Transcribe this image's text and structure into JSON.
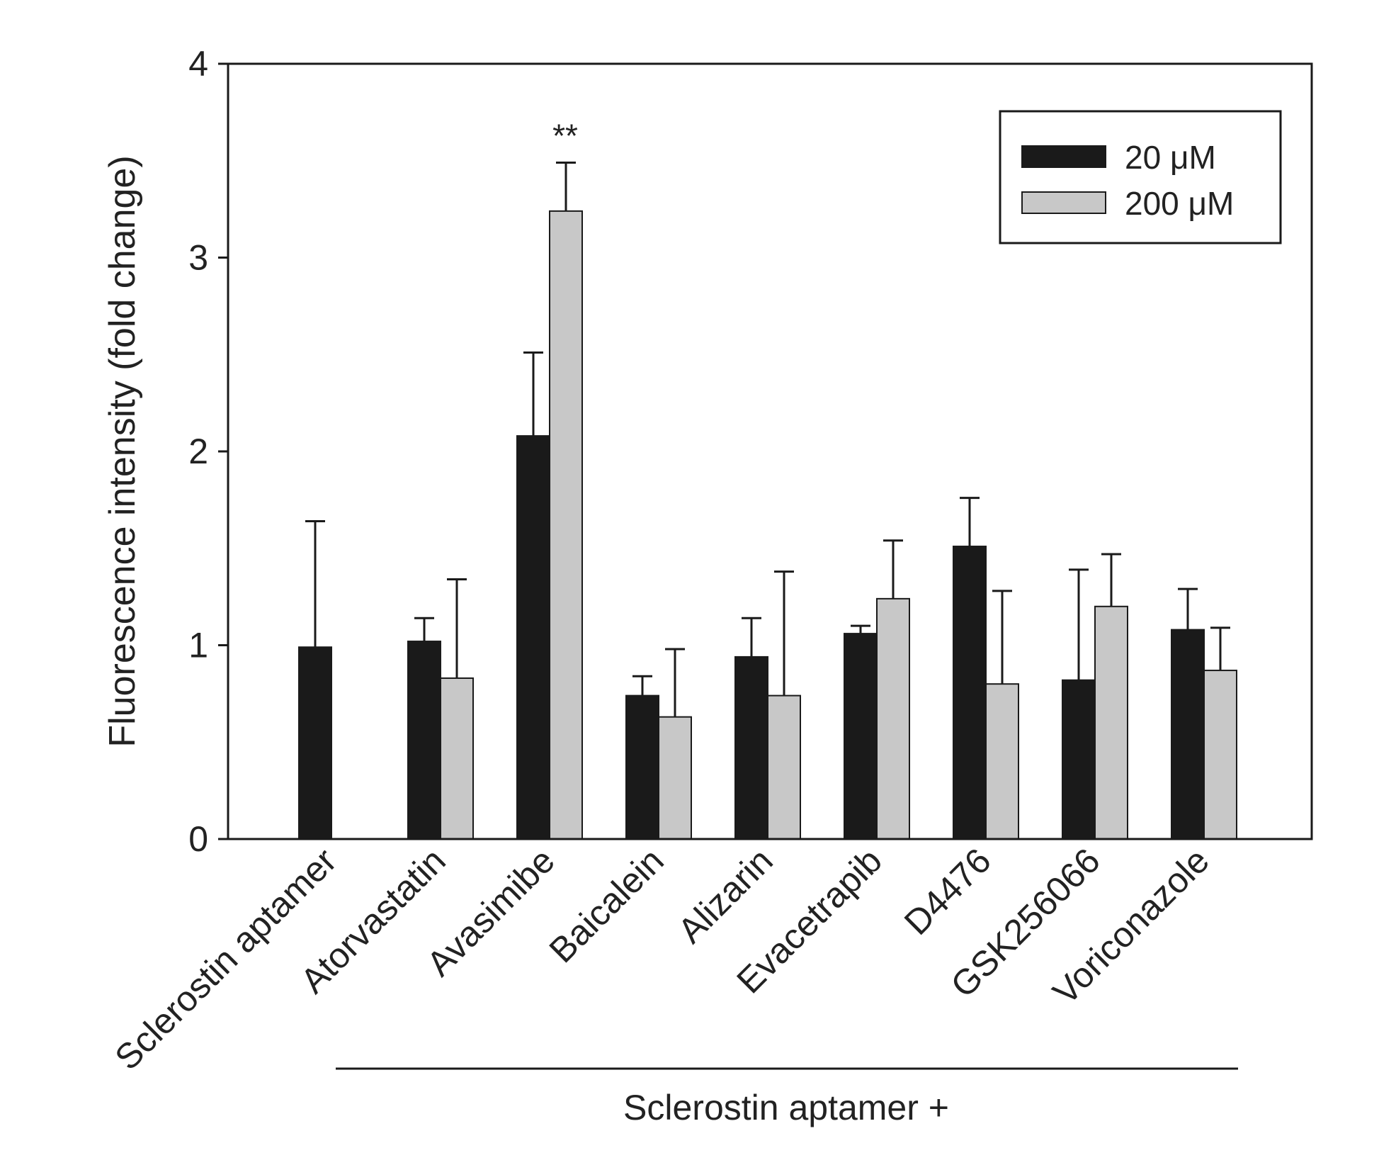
{
  "chart_data": {
    "type": "bar",
    "title": "",
    "xlabel": "",
    "ylabel": "Fluorescence intensity (fold change)",
    "ylim": [
      0,
      4
    ],
    "yticks": [
      "0",
      "1",
      "2",
      "3",
      "4"
    ],
    "grid": false,
    "legend_position": "top-right",
    "categories": [
      "Sclerostin aptamer",
      "Atorvastatin",
      "Avasimibe",
      "Baicalein",
      "Alizarin",
      "Evacetrapib",
      "D4476",
      "GSK256066",
      "Voriconazole"
    ],
    "series": [
      {
        "name": "20 μM",
        "color": "#1a1a1a",
        "values": [
          0.99,
          1.02,
          2.08,
          0.74,
          0.94,
          1.06,
          1.51,
          0.82,
          1.08
        ],
        "errors": [
          0.65,
          0.12,
          0.43,
          0.1,
          0.2,
          0.04,
          0.25,
          0.57,
          0.21
        ]
      },
      {
        "name": "200 μM",
        "color": "#c8c8c8",
        "values": [
          null,
          0.83,
          3.24,
          0.63,
          0.74,
          1.24,
          0.8,
          1.2,
          0.87
        ],
        "errors": [
          null,
          0.51,
          0.25,
          0.35,
          0.64,
          0.3,
          0.48,
          0.27,
          0.22
        ]
      }
    ],
    "annotations": [
      {
        "category": "Avasimibe",
        "text": "**"
      }
    ],
    "group_label": "Sclerostin aptamer +",
    "group_categories": [
      "Atorvastatin",
      "Voriconazole"
    ]
  }
}
